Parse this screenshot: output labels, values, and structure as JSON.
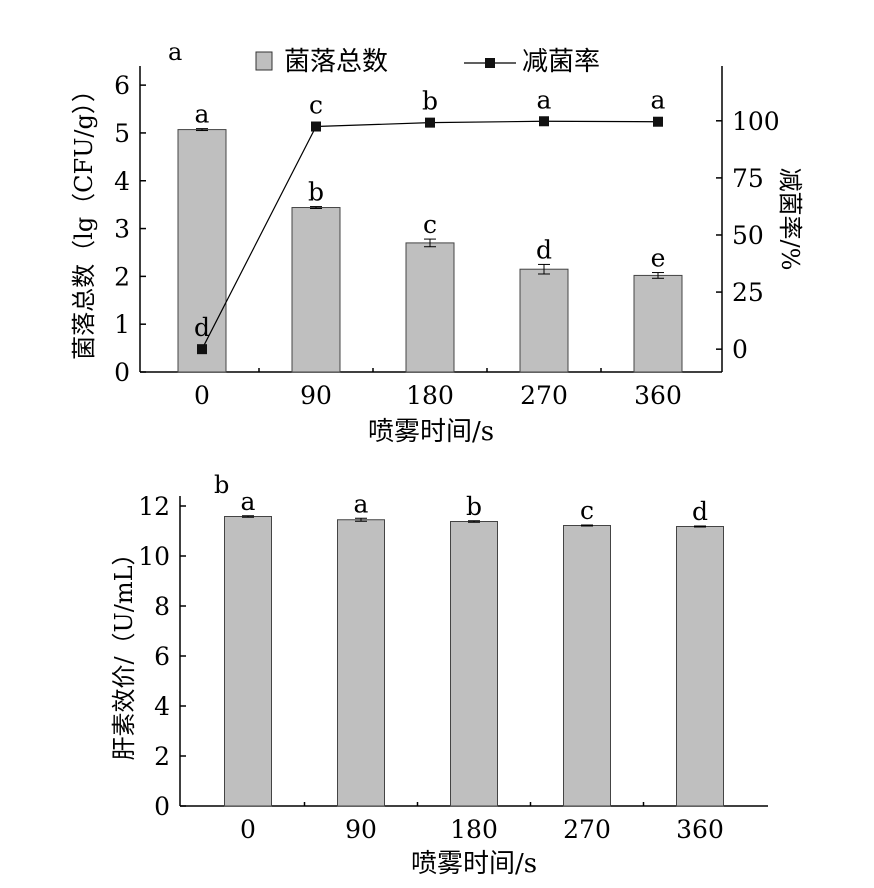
{
  "panels": {
    "top_label": "a",
    "bottom_label": "b"
  },
  "chart_data": [
    {
      "type": "bar",
      "panel_label": "a",
      "categories": [
        "0",
        "90",
        "180",
        "270",
        "360"
      ],
      "xlabel": "喷雾时间/s",
      "ylabel": "菌落总数（lg（CFU/g））",
      "ylim": [
        0,
        6.4
      ],
      "yticks": [
        "0",
        "1",
        "2",
        "3",
        "4",
        "5",
        "6"
      ],
      "bar_color": "#bfbfbf",
      "legend": {
        "bar_label": "菌落总数",
        "line_label": "减菌率",
        "position": "top"
      },
      "series": [
        {
          "name": "菌落总数",
          "type": "bar",
          "values": [
            5.07,
            3.44,
            2.7,
            2.15,
            2.02
          ],
          "errors": [
            0.02,
            0.02,
            0.08,
            0.1,
            0.06
          ],
          "letters": [
            "a",
            "b",
            "c",
            "d",
            "e"
          ]
        },
        {
          "name": "减菌率",
          "type": "line",
          "axis": "right",
          "values": [
            0,
            97.5,
            99.2,
            99.8,
            99.6
          ],
          "letters": [
            "d",
            "c",
            "b",
            "a",
            "a"
          ]
        }
      ],
      "y2label": "减菌率/%",
      "y2lim": [
        -10,
        124
      ],
      "y2ticks": [
        "0",
        "25",
        "50",
        "75",
        "100"
      ]
    },
    {
      "type": "bar",
      "panel_label": "b",
      "categories": [
        "0",
        "90",
        "180",
        "270",
        "360"
      ],
      "xlabel": "喷雾时间/s",
      "ylabel": "肝素效价/（U/mL）",
      "ylim": [
        0,
        12.4
      ],
      "yticks": [
        "0",
        "2",
        "4",
        "6",
        "8",
        "10",
        "12"
      ],
      "bar_color": "#bfbfbf",
      "series": [
        {
          "name": "肝素效价",
          "type": "bar",
          "values": [
            11.58,
            11.45,
            11.38,
            11.22,
            11.18
          ],
          "errors": [
            0.03,
            0.06,
            0.03,
            0.02,
            0.02
          ],
          "letters": [
            "a",
            "a",
            "b",
            "c",
            "d"
          ]
        }
      ]
    }
  ]
}
